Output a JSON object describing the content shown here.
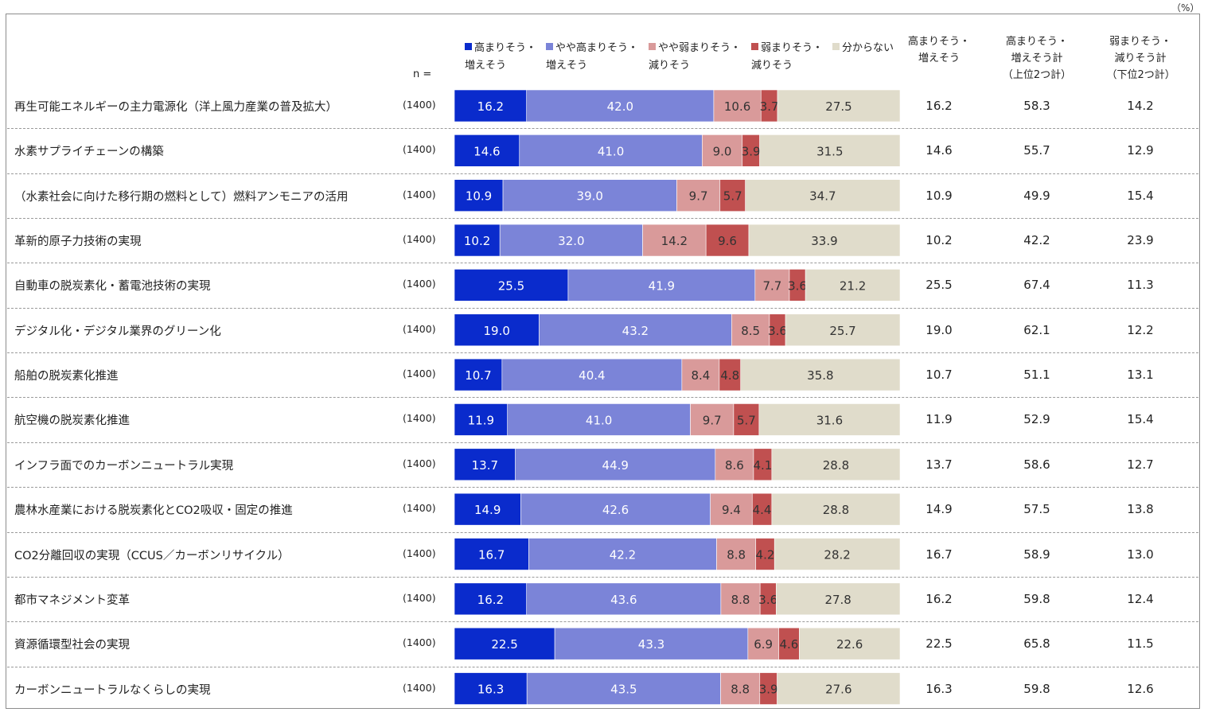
{
  "unit_label": "（%）",
  "n_label": "n =",
  "legend": [
    {
      "label": "高まりそう・\n増えそう",
      "color": "#0a2bcc"
    },
    {
      "label": "やや高まりそう・\n増えそう",
      "color": "#7b84d8"
    },
    {
      "label": "やや弱まりそう・\n減りそう",
      "color": "#d99a9a"
    },
    {
      "label": "弱まりそう・\n減りそう",
      "color": "#c05050"
    },
    {
      "label": "分からない",
      "color": "#e0dccb"
    }
  ],
  "column_headers": [
    "高まりそう・\n増えそう",
    "高まりそう・\n増えそう計\n（上位2つ計）",
    "弱まりそう・\n減りそう計\n（下位2つ計）"
  ],
  "chart_data": {
    "type": "bar",
    "orientation": "horizontal-stacked-100",
    "xlim": [
      0,
      100
    ],
    "series_names": [
      "高まりそう・増えそう",
      "やや高まりそう・増えそう",
      "やや弱まりそう・減りそう",
      "弱まりそう・減りそう",
      "分からない"
    ],
    "rows": [
      {
        "label": "再生可能エネルギーの主力電源化（洋上風力産業の普及拡大）",
        "n": "(1400)",
        "values": [
          16.2,
          42.0,
          10.6,
          3.7,
          27.5
        ],
        "s1": "16.2",
        "s2": "58.3",
        "s3": "14.2"
      },
      {
        "label": "水素サプライチェーンの構築",
        "n": "(1400)",
        "values": [
          14.6,
          41.0,
          9.0,
          3.9,
          31.5
        ],
        "s1": "14.6",
        "s2": "55.7",
        "s3": "12.9"
      },
      {
        "label": "（水素社会に向けた移行期の燃料として）燃料アンモニアの活用",
        "n": "(1400)",
        "values": [
          10.9,
          39.0,
          9.7,
          5.7,
          34.7
        ],
        "s1": "10.9",
        "s2": "49.9",
        "s3": "15.4"
      },
      {
        "label": "革新的原子力技術の実現",
        "n": "(1400)",
        "values": [
          10.2,
          32.0,
          14.2,
          9.6,
          33.9
        ],
        "s1": "10.2",
        "s2": "42.2",
        "s3": "23.9"
      },
      {
        "label": "自動車の脱炭素化・蓄電池技術の実現",
        "n": "(1400)",
        "values": [
          25.5,
          41.9,
          7.7,
          3.6,
          21.2
        ],
        "s1": "25.5",
        "s2": "67.4",
        "s3": "11.3"
      },
      {
        "label": "デジタル化・デジタル業界のグリーン化",
        "n": "(1400)",
        "values": [
          19.0,
          43.2,
          8.5,
          3.6,
          25.7
        ],
        "s1": "19.0",
        "s2": "62.1",
        "s3": "12.2"
      },
      {
        "label": "船舶の脱炭素化推進",
        "n": "(1400)",
        "values": [
          10.7,
          40.4,
          8.4,
          4.8,
          35.8
        ],
        "s1": "10.7",
        "s2": "51.1",
        "s3": "13.1"
      },
      {
        "label": "航空機の脱炭素化推進",
        "n": "(1400)",
        "values": [
          11.9,
          41.0,
          9.7,
          5.7,
          31.6
        ],
        "s1": "11.9",
        "s2": "52.9",
        "s3": "15.4"
      },
      {
        "label": "インフラ面でのカーボンニュートラル実現",
        "n": "(1400)",
        "values": [
          13.7,
          44.9,
          8.6,
          4.1,
          28.8
        ],
        "s1": "13.7",
        "s2": "58.6",
        "s3": "12.7"
      },
      {
        "label": "農林水産業における脱炭素化とCO2吸収・固定の推進",
        "n": "(1400)",
        "values": [
          14.9,
          42.6,
          9.4,
          4.4,
          28.8
        ],
        "s1": "14.9",
        "s2": "57.5",
        "s3": "13.8"
      },
      {
        "label": "CO2分離回収の実現（CCUS／カーボンリサイクル）",
        "n": "(1400)",
        "values": [
          16.7,
          42.2,
          8.8,
          4.2,
          28.2
        ],
        "s1": "16.7",
        "s2": "58.9",
        "s3": "13.0"
      },
      {
        "label": "都市マネジメント変革",
        "n": "(1400)",
        "values": [
          16.2,
          43.6,
          8.8,
          3.6,
          27.8
        ],
        "s1": "16.2",
        "s2": "59.8",
        "s3": "12.4"
      },
      {
        "label": "資源循環型社会の実現",
        "n": "(1400)",
        "values": [
          22.5,
          43.3,
          6.9,
          4.6,
          22.6
        ],
        "s1": "22.5",
        "s2": "65.8",
        "s3": "11.5"
      },
      {
        "label": "カーボンニュートラルなくらしの実現",
        "n": "(1400)",
        "values": [
          16.3,
          43.5,
          8.8,
          3.9,
          27.6
        ],
        "s1": "16.3",
        "s2": "59.8",
        "s3": "12.6"
      }
    ]
  }
}
